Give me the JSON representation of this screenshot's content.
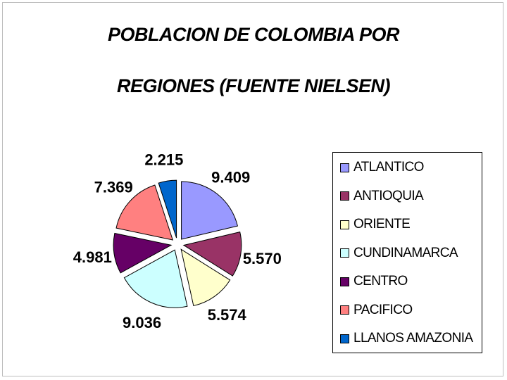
{
  "chart_data": {
    "type": "pie",
    "title_line1": "POBLACION DE COLOMBIA POR",
    "title_line2": "REGIONES (FUENTE NIELSEN)",
    "exploded": true,
    "legend_position": "right",
    "slices": [
      {
        "label": "ATLANTICO",
        "value": 9409,
        "display": "9.409",
        "color": "#9999ff"
      },
      {
        "label": "ANTIOQUIA",
        "value": 5570,
        "display": "5.570",
        "color": "#993366"
      },
      {
        "label": "ORIENTE",
        "value": 5574,
        "display": "5.574",
        "color": "#ffffcc"
      },
      {
        "label": "CUNDINAMARCA",
        "value": 9036,
        "display": "9.036",
        "color": "#ccffff"
      },
      {
        "label": "CENTRO",
        "value": 4981,
        "display": "4.981",
        "color": "#660066"
      },
      {
        "label": "PACIFICO",
        "value": 7369,
        "display": "7.369",
        "color": "#ff8080"
      },
      {
        "label": "LLANOS AMAZONIA",
        "value": 2215,
        "display": "2.215",
        "color": "#0066cc"
      }
    ]
  }
}
